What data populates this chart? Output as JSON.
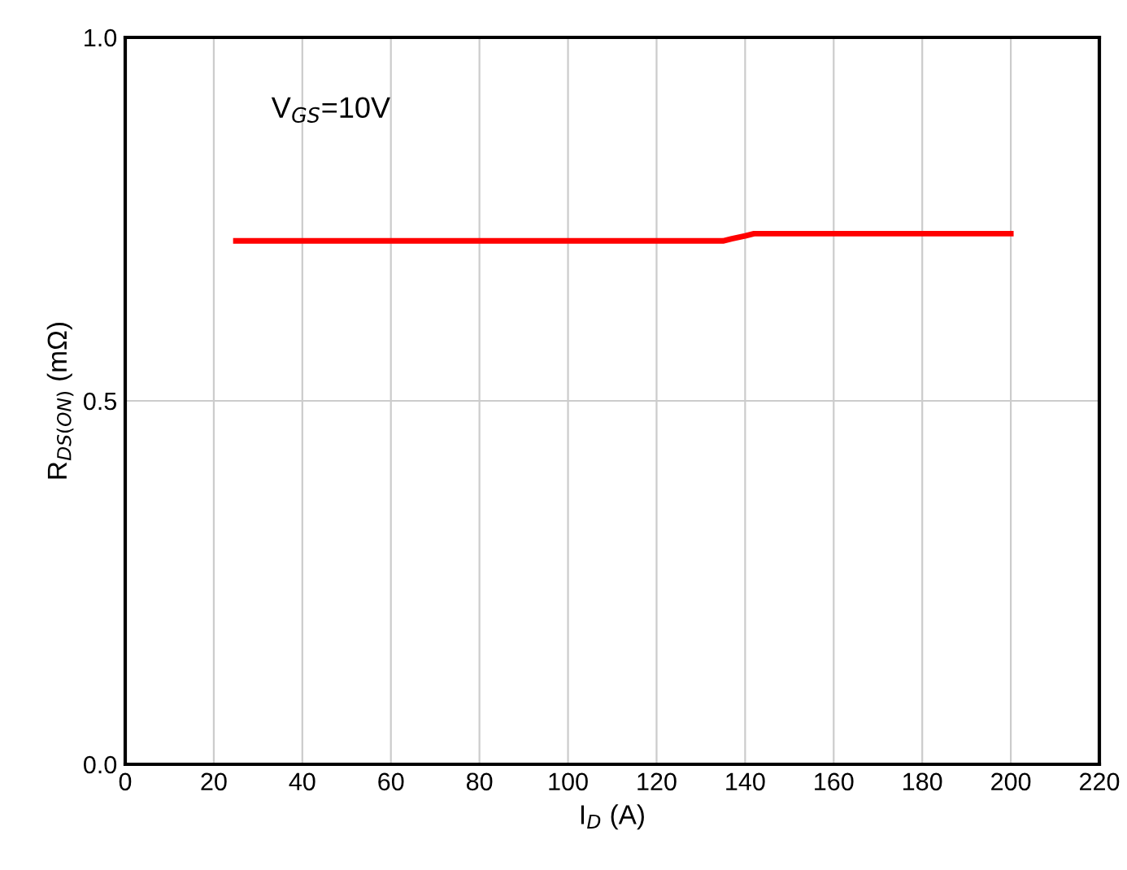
{
  "chart_data": {
    "type": "line",
    "xlabel": "I$_{D}$ (A)",
    "ylabel": "R$_{DS(ON)}$ (mΩ)",
    "annotations": [
      "V$_{GS}$=10V"
    ],
    "x": [
      25,
      60,
      100,
      135,
      137,
      140,
      142,
      170,
      200
    ],
    "series": [
      {
        "color": "#ff0000",
        "values": [
          0.72,
          0.72,
          0.72,
          0.72,
          0.723,
          0.727,
          0.73,
          0.73,
          0.73
        ]
      }
    ],
    "xlim": [
      0,
      220
    ],
    "xticks": [
      0,
      20,
      40,
      60,
      80,
      100,
      120,
      140,
      160,
      180,
      200,
      220
    ],
    "ylim": [
      0,
      1
    ],
    "yticks": [
      {
        "value": 0,
        "label": "0.0"
      },
      {
        "value": 0.5,
        "label": "0.5"
      },
      {
        "value": 1,
        "label": "1.0"
      }
    ],
    "grid": true,
    "marker": "none",
    "line_style": "solid"
  }
}
